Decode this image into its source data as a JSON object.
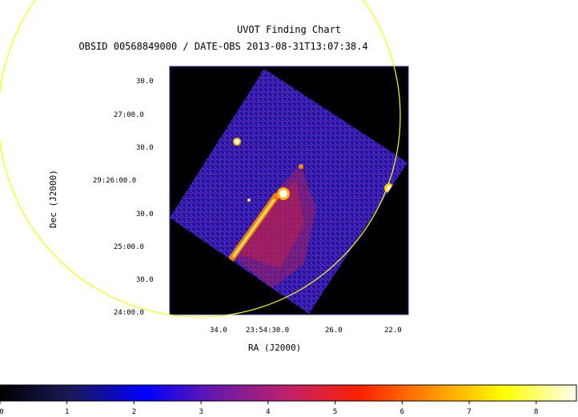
{
  "title": "UVOT Finding Chart",
  "subtitle": "OBSID 00568849000 / DATE-OBS 2013-08-31T13:07:38.4",
  "axes": {
    "x_label": "RA (J2000)",
    "y_label": "Dec (J2000)",
    "x_ticks": [
      "34.0",
      "23:54:30.0",
      "26.0",
      "22.0"
    ],
    "y_ticks": [
      "30.0",
      "27:00.0",
      "30.0",
      "29:26:00.0",
      "30.0",
      "25:00.0",
      "30.0",
      "24:00.0"
    ]
  },
  "colorbar": {
    "ticks": [
      "0",
      "1",
      "2",
      "3",
      "4",
      "5",
      "6",
      "7",
      "8"
    ],
    "stops": [
      "#000000",
      "#1a1a5a",
      "#0000ff",
      "#6a1aa8",
      "#c0206a",
      "#ff2000",
      "#ff9000",
      "#ffff00",
      "#fffff0"
    ],
    "range": [
      0,
      8.6
    ]
  },
  "image": {
    "background": "#000000",
    "field_color": "#2a1aa0",
    "source_color": "#ffffff"
  }
}
